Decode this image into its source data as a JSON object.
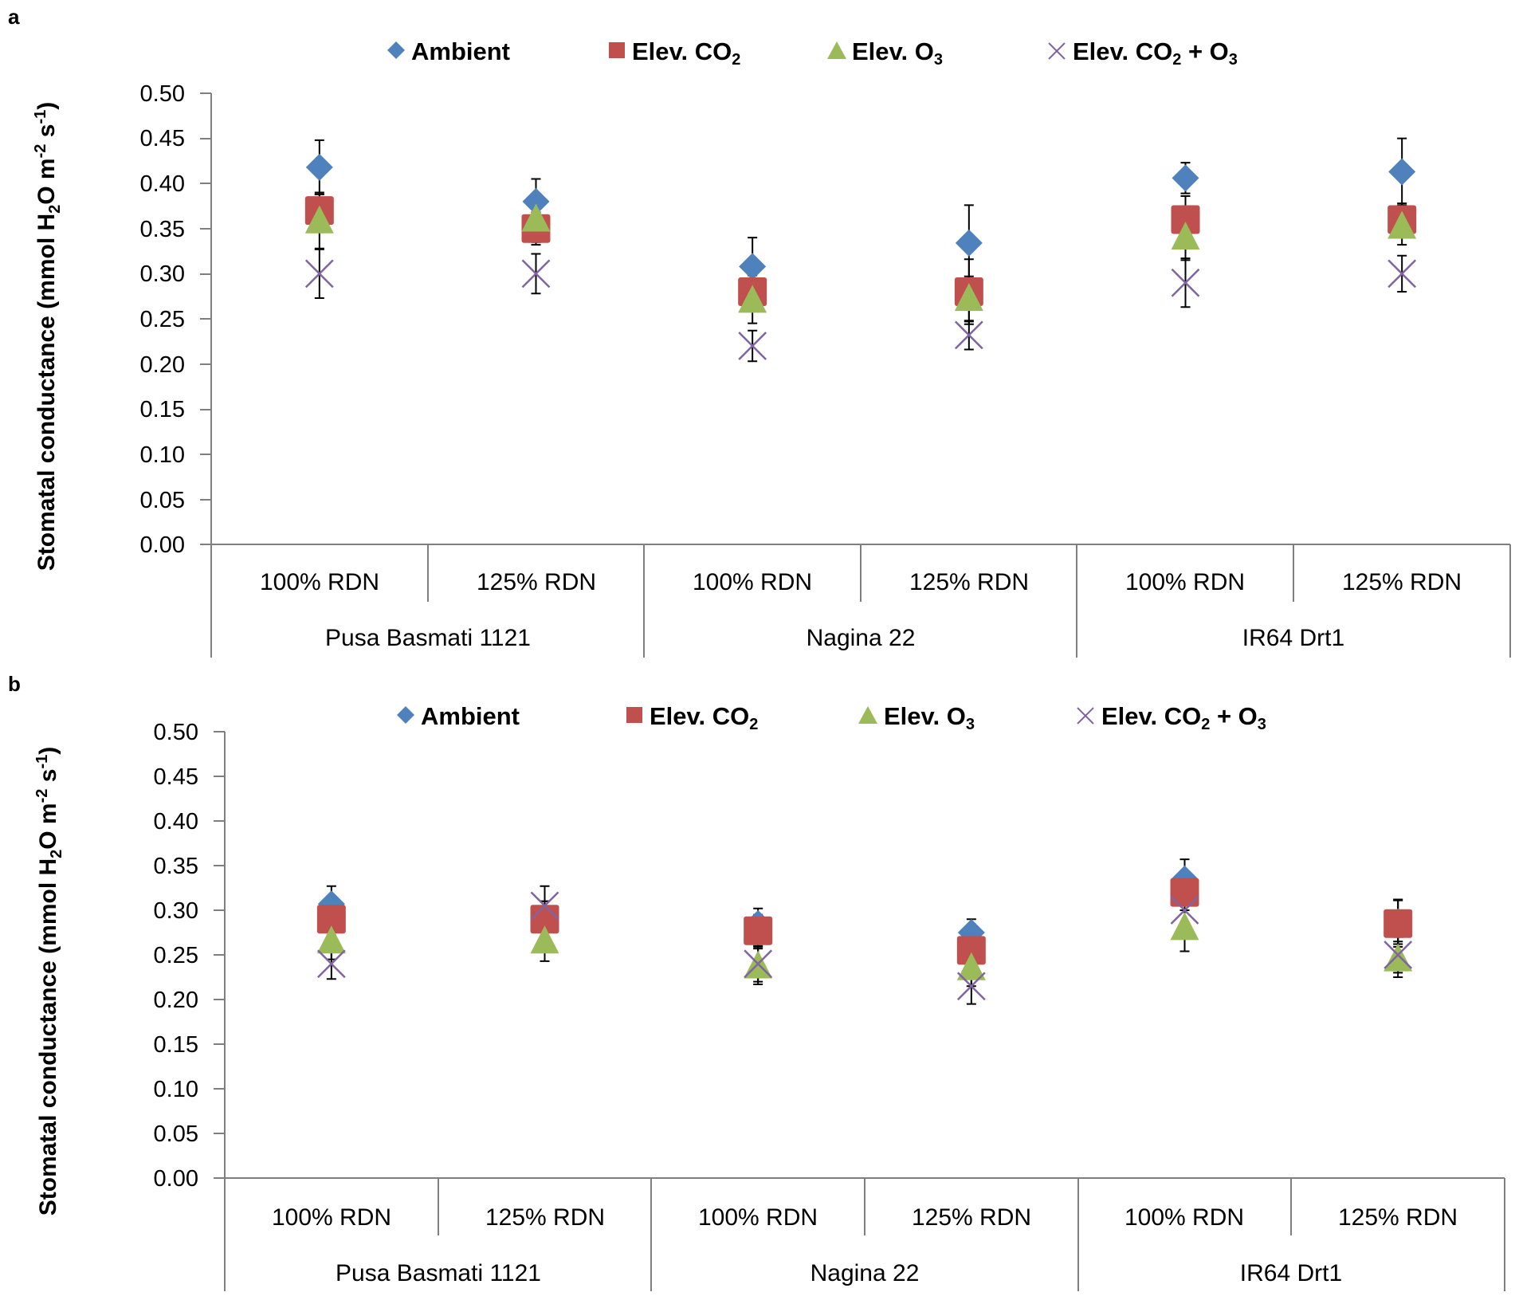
{
  "colors": {
    "ambient": "#4F81BD",
    "elev_co2": "#C0504D",
    "elev_o3": "#9BBB59",
    "elev_co2_o3": "#8064A2",
    "axis": "#7f7f7f",
    "errorbar": "#000000"
  },
  "legend": {
    "ambient": "Ambient",
    "elev_co2_main": "Elev. CO",
    "elev_co2_sub": "2",
    "elev_o3_main": "Elev. O",
    "elev_o3_sub": "3",
    "combo_a": "Elev. CO",
    "combo_b": "2",
    "combo_c": " + O",
    "combo_d": "3"
  },
  "ylabel": {
    "part1": "Stomatal conductance (mmol H",
    "part2": "2",
    "part3": "O m",
    "part4": "-2",
    "part5": " s",
    "part6": "-1",
    "part7": ")"
  },
  "chart_data": [
    {
      "panel": "a",
      "type": "scatter",
      "categories": [
        "100% RDN",
        "125% RDN",
        "100% RDN",
        "125% RDN",
        "100% RDN",
        "125% RDN"
      ],
      "groups": [
        "Pusa Basmati 1121",
        "Nagina 22",
        "IR64 Drt1"
      ],
      "ylim": [
        0,
        0.5
      ],
      "yticks": [
        "0.00",
        "0.05",
        "0.10",
        "0.15",
        "0.20",
        "0.25",
        "0.30",
        "0.35",
        "0.40",
        "0.45",
        "0.50"
      ],
      "series": [
        {
          "name": "Ambient",
          "values": [
            0.418,
            0.38,
            0.308,
            0.334,
            0.406,
            0.413
          ],
          "errors": [
            0.03,
            0.025,
            0.032,
            0.042,
            0.017,
            0.037
          ]
        },
        {
          "name": "Elev. CO2",
          "values": [
            0.37,
            0.35,
            0.28,
            0.28,
            0.36,
            0.36
          ],
          "errors": [
            0.02,
            0.018,
            0.018,
            0.036,
            0.026,
            0.018
          ]
        },
        {
          "name": "Elev. O3",
          "values": [
            0.358,
            0.36,
            0.27,
            0.272,
            0.34,
            0.352
          ],
          "errors": [
            0.03,
            0.025,
            0.025,
            0.025,
            0.025,
            0.02
          ]
        },
        {
          "name": "Elev. CO2 + O3",
          "values": [
            0.3,
            0.3,
            0.22,
            0.232,
            0.29,
            0.3
          ],
          "errors": [
            0.027,
            0.022,
            0.017,
            0.016,
            0.027,
            0.02
          ]
        }
      ]
    },
    {
      "panel": "b",
      "type": "scatter",
      "categories": [
        "100% RDN",
        "125% RDN",
        "100% RDN",
        "125% RDN",
        "100% RDN",
        "125% RDN"
      ],
      "groups": [
        "Pusa Basmati 1121",
        "Nagina 22",
        "IR64 Drt1"
      ],
      "ylim": [
        0,
        0.5
      ],
      "yticks": [
        "0.00",
        "0.05",
        "0.10",
        "0.15",
        "0.20",
        "0.25",
        "0.30",
        "0.35",
        "0.40",
        "0.45",
        "0.50"
      ],
      "series": [
        {
          "name": "Ambient",
          "values": [
            0.307,
            0.29,
            0.285,
            0.275,
            0.335,
            0.287
          ],
          "errors": [
            0.02,
            0.02,
            0.017,
            0.015,
            0.022,
            0.025
          ]
        },
        {
          "name": "Elev. CO2",
          "values": [
            0.29,
            0.29,
            0.277,
            0.255,
            0.32,
            0.285
          ],
          "errors": [
            0.018,
            0.02,
            0.018,
            0.018,
            0.02,
            0.026
          ]
        },
        {
          "name": "Elev. O3",
          "values": [
            0.265,
            0.265,
            0.237,
            0.235,
            0.28,
            0.245
          ],
          "errors": [
            0.02,
            0.022,
            0.02,
            0.02,
            0.026,
            0.02
          ]
        },
        {
          "name": "Elev. CO2 + O3",
          "values": [
            0.24,
            0.305,
            0.24,
            0.215,
            0.3,
            0.25
          ],
          "errors": [
            0.017,
            0.022,
            0.02,
            0.02,
            0.022,
            0.02
          ]
        }
      ]
    }
  ]
}
